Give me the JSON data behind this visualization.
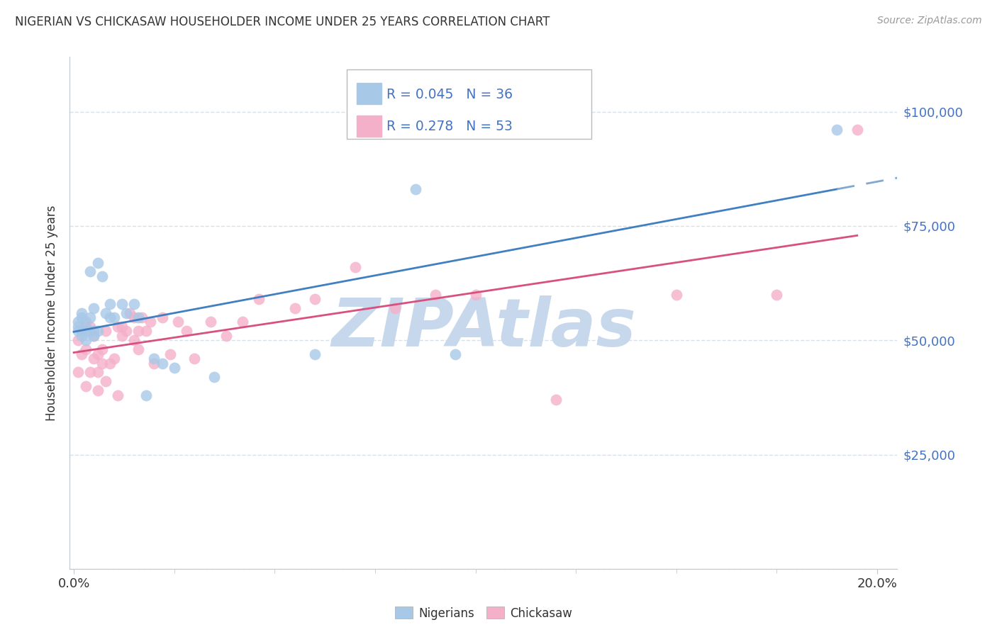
{
  "title": "NIGERIAN VS CHICKASAW HOUSEHOLDER INCOME UNDER 25 YEARS CORRELATION CHART",
  "source": "Source: ZipAtlas.com",
  "ylabel": "Householder Income Under 25 years",
  "ylim": [
    0,
    112000
  ],
  "xlim": [
    -0.001,
    0.205
  ],
  "xticks": [
    0.0,
    0.2
  ],
  "xticklabels": [
    "0.0%",
    "20.0%"
  ],
  "xticks_minor": [
    0.025,
    0.05,
    0.075,
    0.1,
    0.125,
    0.15,
    0.175
  ],
  "yticks_right": [
    25000,
    50000,
    75000,
    100000
  ],
  "yticks_right_labels": [
    "$25,000",
    "$50,000",
    "$75,000",
    "$100,000"
  ],
  "yticks_grid": [
    0,
    25000,
    50000,
    75000,
    100000
  ],
  "nigerians_R": 0.045,
  "nigerians_N": 36,
  "chickasaw_R": 0.278,
  "chickasaw_N": 53,
  "blue_scatter": "#a8c8e8",
  "pink_scatter": "#f4b0c8",
  "blue_line": "#4080c0",
  "pink_line": "#d85080",
  "blue_dashed": "#80a8d0",
  "grid_color": "#d8e0e8",
  "spine_color": "#c0c8d0",
  "watermark": "ZIPAtlas",
  "watermark_color": "#c8d8ec",
  "title_color": "#333333",
  "label_color": "#333333",
  "right_label_color": "#4472c4",
  "nigerians_x": [
    0.001,
    0.001,
    0.001,
    0.002,
    0.002,
    0.002,
    0.002,
    0.003,
    0.003,
    0.003,
    0.004,
    0.004,
    0.004,
    0.005,
    0.005,
    0.005,
    0.006,
    0.006,
    0.007,
    0.008,
    0.009,
    0.009,
    0.01,
    0.012,
    0.013,
    0.015,
    0.016,
    0.018,
    0.02,
    0.022,
    0.025,
    0.035,
    0.06,
    0.085,
    0.095,
    0.19
  ],
  "nigerians_y": [
    52000,
    54000,
    53000,
    51000,
    52000,
    56000,
    55000,
    50000,
    52000,
    54000,
    52000,
    55000,
    65000,
    52000,
    51000,
    57000,
    52000,
    67000,
    64000,
    56000,
    58000,
    55000,
    55000,
    58000,
    56000,
    58000,
    55000,
    38000,
    46000,
    45000,
    44000,
    42000,
    47000,
    83000,
    47000,
    96000
  ],
  "chickasaw_x": [
    0.001,
    0.001,
    0.002,
    0.002,
    0.003,
    0.003,
    0.003,
    0.004,
    0.004,
    0.005,
    0.005,
    0.006,
    0.006,
    0.006,
    0.007,
    0.007,
    0.008,
    0.008,
    0.009,
    0.01,
    0.011,
    0.011,
    0.012,
    0.012,
    0.013,
    0.014,
    0.015,
    0.015,
    0.016,
    0.016,
    0.017,
    0.018,
    0.019,
    0.02,
    0.022,
    0.024,
    0.026,
    0.028,
    0.03,
    0.034,
    0.038,
    0.042,
    0.046,
    0.055,
    0.06,
    0.07,
    0.08,
    0.09,
    0.1,
    0.12,
    0.15,
    0.175,
    0.195
  ],
  "chickasaw_y": [
    50000,
    43000,
    52000,
    47000,
    53000,
    48000,
    40000,
    53000,
    43000,
    51000,
    46000,
    47000,
    43000,
    39000,
    48000,
    45000,
    41000,
    52000,
    45000,
    46000,
    38000,
    53000,
    53000,
    51000,
    52000,
    56000,
    55000,
    50000,
    52000,
    48000,
    55000,
    52000,
    54000,
    45000,
    55000,
    47000,
    54000,
    52000,
    46000,
    54000,
    51000,
    54000,
    59000,
    57000,
    59000,
    66000,
    57000,
    60000,
    60000,
    37000,
    60000,
    60000,
    96000
  ]
}
